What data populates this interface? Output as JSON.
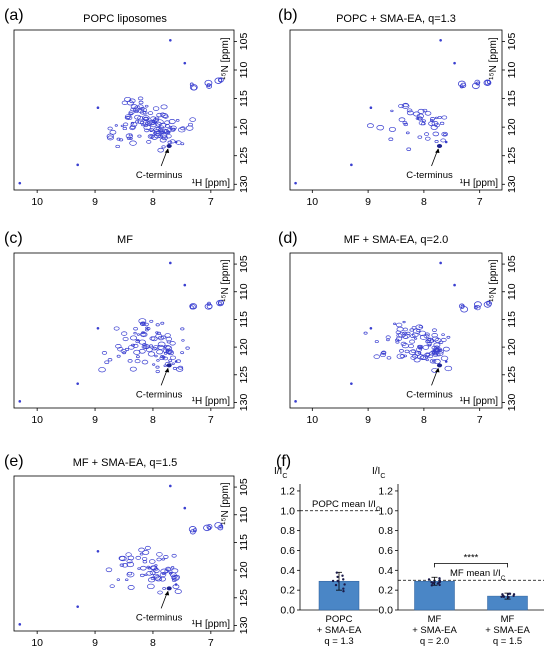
{
  "chart_data": [
    {
      "type": "scatter",
      "panel": "(a)",
      "title": "POPC liposomes",
      "xlabel": "¹H [ppm]",
      "ylabel": "¹⁵N [ppm]",
      "x_ticks": [
        10,
        9,
        8,
        7
      ],
      "y_ticks": [
        105,
        110,
        115,
        120,
        125,
        130
      ],
      "xlim": [
        10.4,
        6.6
      ],
      "ylim": [
        103,
        131
      ],
      "annotation": "C-terminus",
      "color": "#3a3fd0",
      "density": 1.0
    },
    {
      "type": "scatter",
      "panel": "(b)",
      "title": "POPC + SMA-EA, q=1.3",
      "xlabel": "¹H [ppm]",
      "ylabel": "¹⁵N [ppm]",
      "x_ticks": [
        10,
        9,
        8,
        7
      ],
      "y_ticks": [
        105,
        110,
        115,
        120,
        125,
        130
      ],
      "xlim": [
        10.4,
        6.6
      ],
      "ylim": [
        103,
        131
      ],
      "annotation": "C-terminus",
      "color": "#3a3fd0",
      "density": 0.35
    },
    {
      "type": "scatter",
      "panel": "(c)",
      "title": "MF",
      "xlabel": "¹H [ppm]",
      "ylabel": "¹⁵N [ppm]",
      "x_ticks": [
        10,
        9,
        8,
        7
      ],
      "y_ticks": [
        105,
        110,
        115,
        120,
        125,
        130
      ],
      "xlim": [
        10.4,
        6.6
      ],
      "ylim": [
        103,
        131
      ],
      "annotation": "C-terminus",
      "color": "#3a3fd0",
      "density": 0.8
    },
    {
      "type": "scatter",
      "panel": "(d)",
      "title": "MF + SMA-EA, q=2.0",
      "xlabel": "¹H [ppm]",
      "ylabel": "¹⁵N [ppm]",
      "x_ticks": [
        10,
        9,
        8,
        7
      ],
      "y_ticks": [
        105,
        110,
        115,
        120,
        125,
        130
      ],
      "xlim": [
        10.4,
        6.6
      ],
      "ylim": [
        103,
        131
      ],
      "annotation": "C-terminus",
      "color": "#3a3fd0",
      "density": 0.85
    },
    {
      "type": "scatter",
      "panel": "(e)",
      "title": "MF + SMA-EA, q=1.5",
      "xlabel": "¹H [ppm]",
      "ylabel": "¹⁵N [ppm]",
      "x_ticks": [
        10,
        9,
        8,
        7
      ],
      "y_ticks": [
        105,
        110,
        115,
        120,
        125,
        130
      ],
      "xlim": [
        10.4,
        6.6
      ],
      "ylim": [
        103,
        131
      ],
      "annotation": "C-terminus",
      "color": "#3a3fd0",
      "density": 0.55
    },
    {
      "type": "bar",
      "panel": "(f)",
      "ylabel": "I/I",
      "ylabel_sub": "C",
      "y_ticks": [
        0.0,
        0.2,
        0.4,
        0.6,
        0.8,
        1.0,
        1.2
      ],
      "ylim": [
        0.0,
        1.27
      ],
      "bar_color": "#4a86c6",
      "groups": [
        {
          "categories": [
            [
              "POPC",
              "+ SMA-EA",
              "q = 1.3"
            ]
          ],
          "values": [
            0.29
          ],
          "errors": [
            0.09
          ],
          "reference_line": 1.0,
          "reference_label": "POPC mean I/I",
          "reference_sub": "C"
        },
        {
          "categories": [
            [
              "MF",
              "+ SMA-EA",
              "q = 2.0"
            ],
            [
              "MF",
              "+ SMA-EA",
              "q = 1.5"
            ]
          ],
          "values": [
            0.29,
            0.14
          ],
          "errors": [
            0.04,
            0.03
          ],
          "reference_line": 0.3,
          "reference_label": "MF mean I/I",
          "reference_sub": "C",
          "significance": "****"
        }
      ]
    }
  ]
}
